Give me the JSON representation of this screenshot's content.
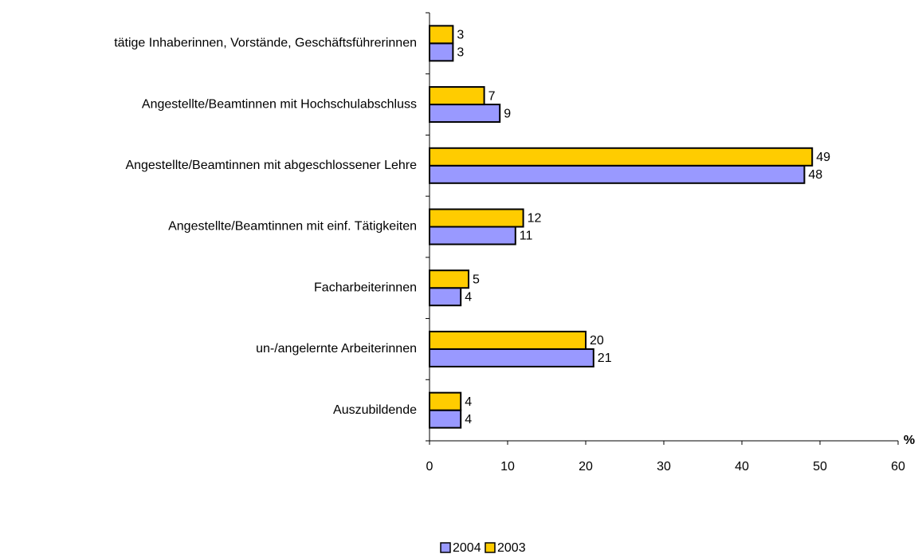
{
  "chart_data": {
    "type": "bar",
    "orientation": "horizontal",
    "categories": [
      "tätige Inhaberinnen, Vorstände, Geschäftsführerinnen",
      "Angestellte/Beamtinnen mit Hochschulabschluss",
      "Angestellte/Beamtinnen mit abgeschlossener Lehre",
      "Angestellte/Beamtinnen mit einf. Tätigkeiten",
      "Facharbeiterinnen",
      "un-/angelernte Arbeiterinnen",
      "Auszubildende"
    ],
    "series": [
      {
        "name": "2004",
        "color": "#9999ff",
        "values": [
          3,
          9,
          48,
          11,
          4,
          21,
          4
        ]
      },
      {
        "name": "2003",
        "color": "#ffcc00",
        "values": [
          3,
          7,
          49,
          12,
          5,
          20,
          4
        ]
      }
    ],
    "x_label": "%",
    "xlim": [
      0,
      60
    ],
    "xticks": [
      0,
      10,
      20,
      30,
      40,
      50,
      60
    ],
    "legend": "bottom"
  }
}
